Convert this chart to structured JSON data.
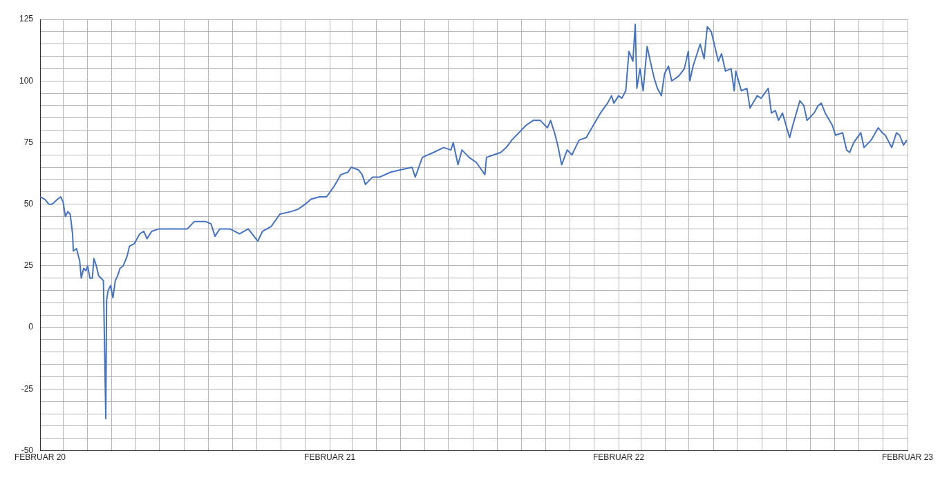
{
  "chart_data": {
    "type": "line",
    "x": [
      "2020-02-01",
      "2020-02-07",
      "2020-02-12",
      "2020-02-16",
      "2020-02-23",
      "2020-02-27",
      "2020-03-01",
      "2020-03-04",
      "2020-03-07",
      "2020-03-10",
      "2020-03-13",
      "2020-03-14",
      "2020-03-18",
      "2020-03-22",
      "2020-03-24",
      "2020-03-27",
      "2020-03-30",
      "2020-04-01",
      "2020-04-04",
      "2020-04-07",
      "2020-04-09",
      "2020-04-12",
      "2020-04-15",
      "2020-04-18",
      "2020-04-21",
      "2020-04-24",
      "2020-04-25",
      "2020-04-27",
      "2020-04-30",
      "2020-05-03",
      "2020-05-06",
      "2020-05-09",
      "2020-05-12",
      "2020-05-16",
      "2020-05-21",
      "2020-05-24",
      "2020-05-30",
      "2020-06-06",
      "2020-06-11",
      "2020-06-15",
      "2020-06-21",
      "2020-06-30",
      "2020-07-09",
      "2020-07-23",
      "2020-08-05",
      "2020-08-14",
      "2020-08-28",
      "2020-09-04",
      "2020-09-09",
      "2020-09-15",
      "2020-09-28",
      "2020-10-10",
      "2020-10-21",
      "2020-11-02",
      "2020-11-08",
      "2020-11-19",
      "2020-11-30",
      "2020-12-14",
      "2020-12-23",
      "2021-01-01",
      "2021-01-08",
      "2021-01-19",
      "2021-01-28",
      "2021-02-06",
      "2021-02-15",
      "2021-02-24",
      "2021-02-28",
      "2021-03-09",
      "2021-03-14",
      "2021-03-18",
      "2021-03-27",
      "2021-04-05",
      "2021-04-19",
      "2021-05-02",
      "2021-05-16",
      "2021-05-20",
      "2021-05-29",
      "2021-06-12",
      "2021-06-25",
      "2021-07-04",
      "2021-07-07",
      "2021-07-13",
      "2021-07-18",
      "2021-07-27",
      "2021-08-05",
      "2021-08-16",
      "2021-08-18",
      "2021-08-27",
      "2021-09-05",
      "2021-09-12",
      "2021-09-19",
      "2021-09-28",
      "2021-10-07",
      "2021-10-16",
      "2021-10-25",
      "2021-11-03",
      "2021-11-07",
      "2021-11-12",
      "2021-11-16",
      "2021-11-21",
      "2021-11-28",
      "2021-12-04",
      "2021-12-13",
      "2021-12-22",
      "2021-12-31",
      "2022-01-09",
      "2022-01-18",
      "2022-01-23",
      "2022-01-26",
      "2022-02-01",
      "2022-02-05",
      "2022-02-10",
      "2022-02-14",
      "2022-02-19",
      "2022-02-22",
      "2022-02-24",
      "2022-02-28",
      "2022-03-04",
      "2022-03-09",
      "2022-03-13",
      "2022-03-18",
      "2022-03-22",
      "2022-03-27",
      "2022-03-31",
      "2022-04-05",
      "2022-04-09",
      "2022-04-18",
      "2022-04-25",
      "2022-04-30",
      "2022-05-02",
      "2022-05-06",
      "2022-05-11",
      "2022-05-15",
      "2022-05-20",
      "2022-05-24",
      "2022-05-29",
      "2022-06-07",
      "2022-06-11",
      "2022-06-16",
      "2022-06-23",
      "2022-06-27",
      "2022-06-29",
      "2022-07-06",
      "2022-07-13",
      "2022-07-17",
      "2022-07-26",
      "2022-07-31",
      "2022-08-09",
      "2022-08-13",
      "2022-08-18",
      "2022-08-22",
      "2022-08-27",
      "2022-09-05",
      "2022-09-09",
      "2022-09-18",
      "2022-09-23",
      "2022-09-27",
      "2022-10-06",
      "2022-10-11",
      "2022-10-15",
      "2022-10-20",
      "2022-10-29",
      "2022-11-02",
      "2022-11-11",
      "2022-11-16",
      "2022-11-20",
      "2022-11-25",
      "2022-12-04",
      "2022-12-08",
      "2022-12-17",
      "2022-12-26",
      "2022-12-31",
      "2023-01-04",
      "2023-01-12",
      "2023-01-18",
      "2023-01-22",
      "2023-01-27",
      "2023-01-31"
    ],
    "series": [
      {
        "color": "#4472c4",
        "values": [
          53,
          52,
          50,
          50,
          52,
          53,
          51,
          45,
          47,
          46,
          38,
          31,
          32,
          27,
          20,
          24,
          23,
          25,
          20,
          20,
          28,
          25,
          21,
          20,
          19,
          -37,
          11,
          15,
          17,
          12,
          19,
          21,
          24,
          25,
          29,
          33,
          34,
          38,
          39,
          36,
          39,
          40,
          40,
          40,
          40,
          43,
          43,
          42,
          37,
          40,
          40,
          38,
          40,
          35,
          39,
          41,
          46,
          47,
          48,
          50,
          52,
          53,
          53,
          57,
          62,
          63,
          65,
          64,
          62,
          58,
          61,
          61,
          63,
          64,
          65,
          61,
          69,
          71,
          73,
          72,
          75,
          66,
          72,
          69,
          67,
          62,
          69,
          70,
          71,
          73,
          76,
          79,
          82,
          84,
          84,
          81,
          84,
          79,
          74,
          66,
          72,
          70,
          76,
          77,
          82,
          87,
          91,
          94,
          91,
          94,
          93,
          96,
          112,
          108,
          123,
          97,
          105,
          96,
          114,
          108,
          101,
          97,
          94,
          103,
          106,
          100,
          102,
          105,
          112,
          100,
          106,
          111,
          115,
          109,
          122,
          120,
          108,
          111,
          104,
          105,
          96,
          104,
          96,
          97,
          89,
          94,
          93,
          97,
          87,
          88,
          84,
          87,
          77,
          82,
          92,
          90,
          84,
          87,
          90,
          91,
          87,
          82,
          78,
          79,
          72,
          71,
          75,
          79,
          73,
          76,
          81,
          79,
          78,
          73,
          79,
          78,
          74,
          76
        ]
      }
    ],
    "xlim": [
      "2020-02-01",
      "2023-02-01"
    ],
    "xticks": [
      {
        "value": "2020-02-01",
        "label": "FEBRUAR 20"
      },
      {
        "value": "2020-03-01",
        "label": null
      },
      {
        "value": "2020-04-01",
        "label": null
      },
      {
        "value": "2020-05-01",
        "label": null
      },
      {
        "value": "2020-06-01",
        "label": null
      },
      {
        "value": "2020-07-01",
        "label": null
      },
      {
        "value": "2020-08-01",
        "label": null
      },
      {
        "value": "2020-09-01",
        "label": null
      },
      {
        "value": "2020-10-01",
        "label": null
      },
      {
        "value": "2020-11-01",
        "label": null
      },
      {
        "value": "2020-12-01",
        "label": null
      },
      {
        "value": "2021-01-01",
        "label": null
      },
      {
        "value": "2021-02-01",
        "label": "FEBRUAR 21"
      },
      {
        "value": "2021-03-01",
        "label": null
      },
      {
        "value": "2021-04-01",
        "label": null
      },
      {
        "value": "2021-05-01",
        "label": null
      },
      {
        "value": "2021-06-01",
        "label": null
      },
      {
        "value": "2021-07-01",
        "label": null
      },
      {
        "value": "2021-08-01",
        "label": null
      },
      {
        "value": "2021-09-01",
        "label": null
      },
      {
        "value": "2021-10-01",
        "label": null
      },
      {
        "value": "2021-11-01",
        "label": null
      },
      {
        "value": "2021-12-01",
        "label": null
      },
      {
        "value": "2022-01-01",
        "label": null
      },
      {
        "value": "2022-02-01",
        "label": "FEBRUAR 22"
      },
      {
        "value": "2022-03-01",
        "label": null
      },
      {
        "value": "2022-04-01",
        "label": null
      },
      {
        "value": "2022-05-01",
        "label": null
      },
      {
        "value": "2022-06-01",
        "label": null
      },
      {
        "value": "2022-07-01",
        "label": null
      },
      {
        "value": "2022-08-01",
        "label": null
      },
      {
        "value": "2022-09-01",
        "label": null
      },
      {
        "value": "2022-10-01",
        "label": null
      },
      {
        "value": "2022-11-01",
        "label": null
      },
      {
        "value": "2022-12-01",
        "label": null
      },
      {
        "value": "2023-01-01",
        "label": null
      },
      {
        "value": "2023-02-01",
        "label": "FEBRUAR 23"
      }
    ],
    "ylim": [
      -50,
      125
    ],
    "yticks": [
      -50,
      {
        "value": -45,
        "label": null
      },
      {
        "value": -40,
        "label": null
      },
      {
        "value": -35,
        "label": null
      },
      {
        "value": -30,
        "label": null
      },
      -25,
      {
        "value": -20,
        "label": null
      },
      {
        "value": -15,
        "label": null
      },
      {
        "value": -10,
        "label": null
      },
      {
        "value": -5,
        "label": null
      },
      0,
      {
        "value": 5,
        "label": null
      },
      {
        "value": 10,
        "label": null
      },
      {
        "value": 15,
        "label": null
      },
      {
        "value": 20,
        "label": null
      },
      25,
      {
        "value": 30,
        "label": null
      },
      {
        "value": 35,
        "label": null
      },
      {
        "value": 40,
        "label": null
      },
      {
        "value": 45,
        "label": null
      },
      50,
      {
        "value": 55,
        "label": null
      },
      {
        "value": 60,
        "label": null
      },
      {
        "value": 65,
        "label": null
      },
      {
        "value": 70,
        "label": null
      },
      75,
      {
        "value": 80,
        "label": null
      },
      {
        "value": 85,
        "label": null
      },
      {
        "value": 90,
        "label": null
      },
      {
        "value": 95,
        "label": null
      },
      100,
      {
        "value": 105,
        "label": null
      },
      {
        "value": 110,
        "label": null
      },
      {
        "value": 115,
        "label": null
      },
      {
        "value": 120,
        "label": null
      },
      125
    ],
    "grid": true,
    "legend": false,
    "marker": "none",
    "line_style": "solid"
  }
}
